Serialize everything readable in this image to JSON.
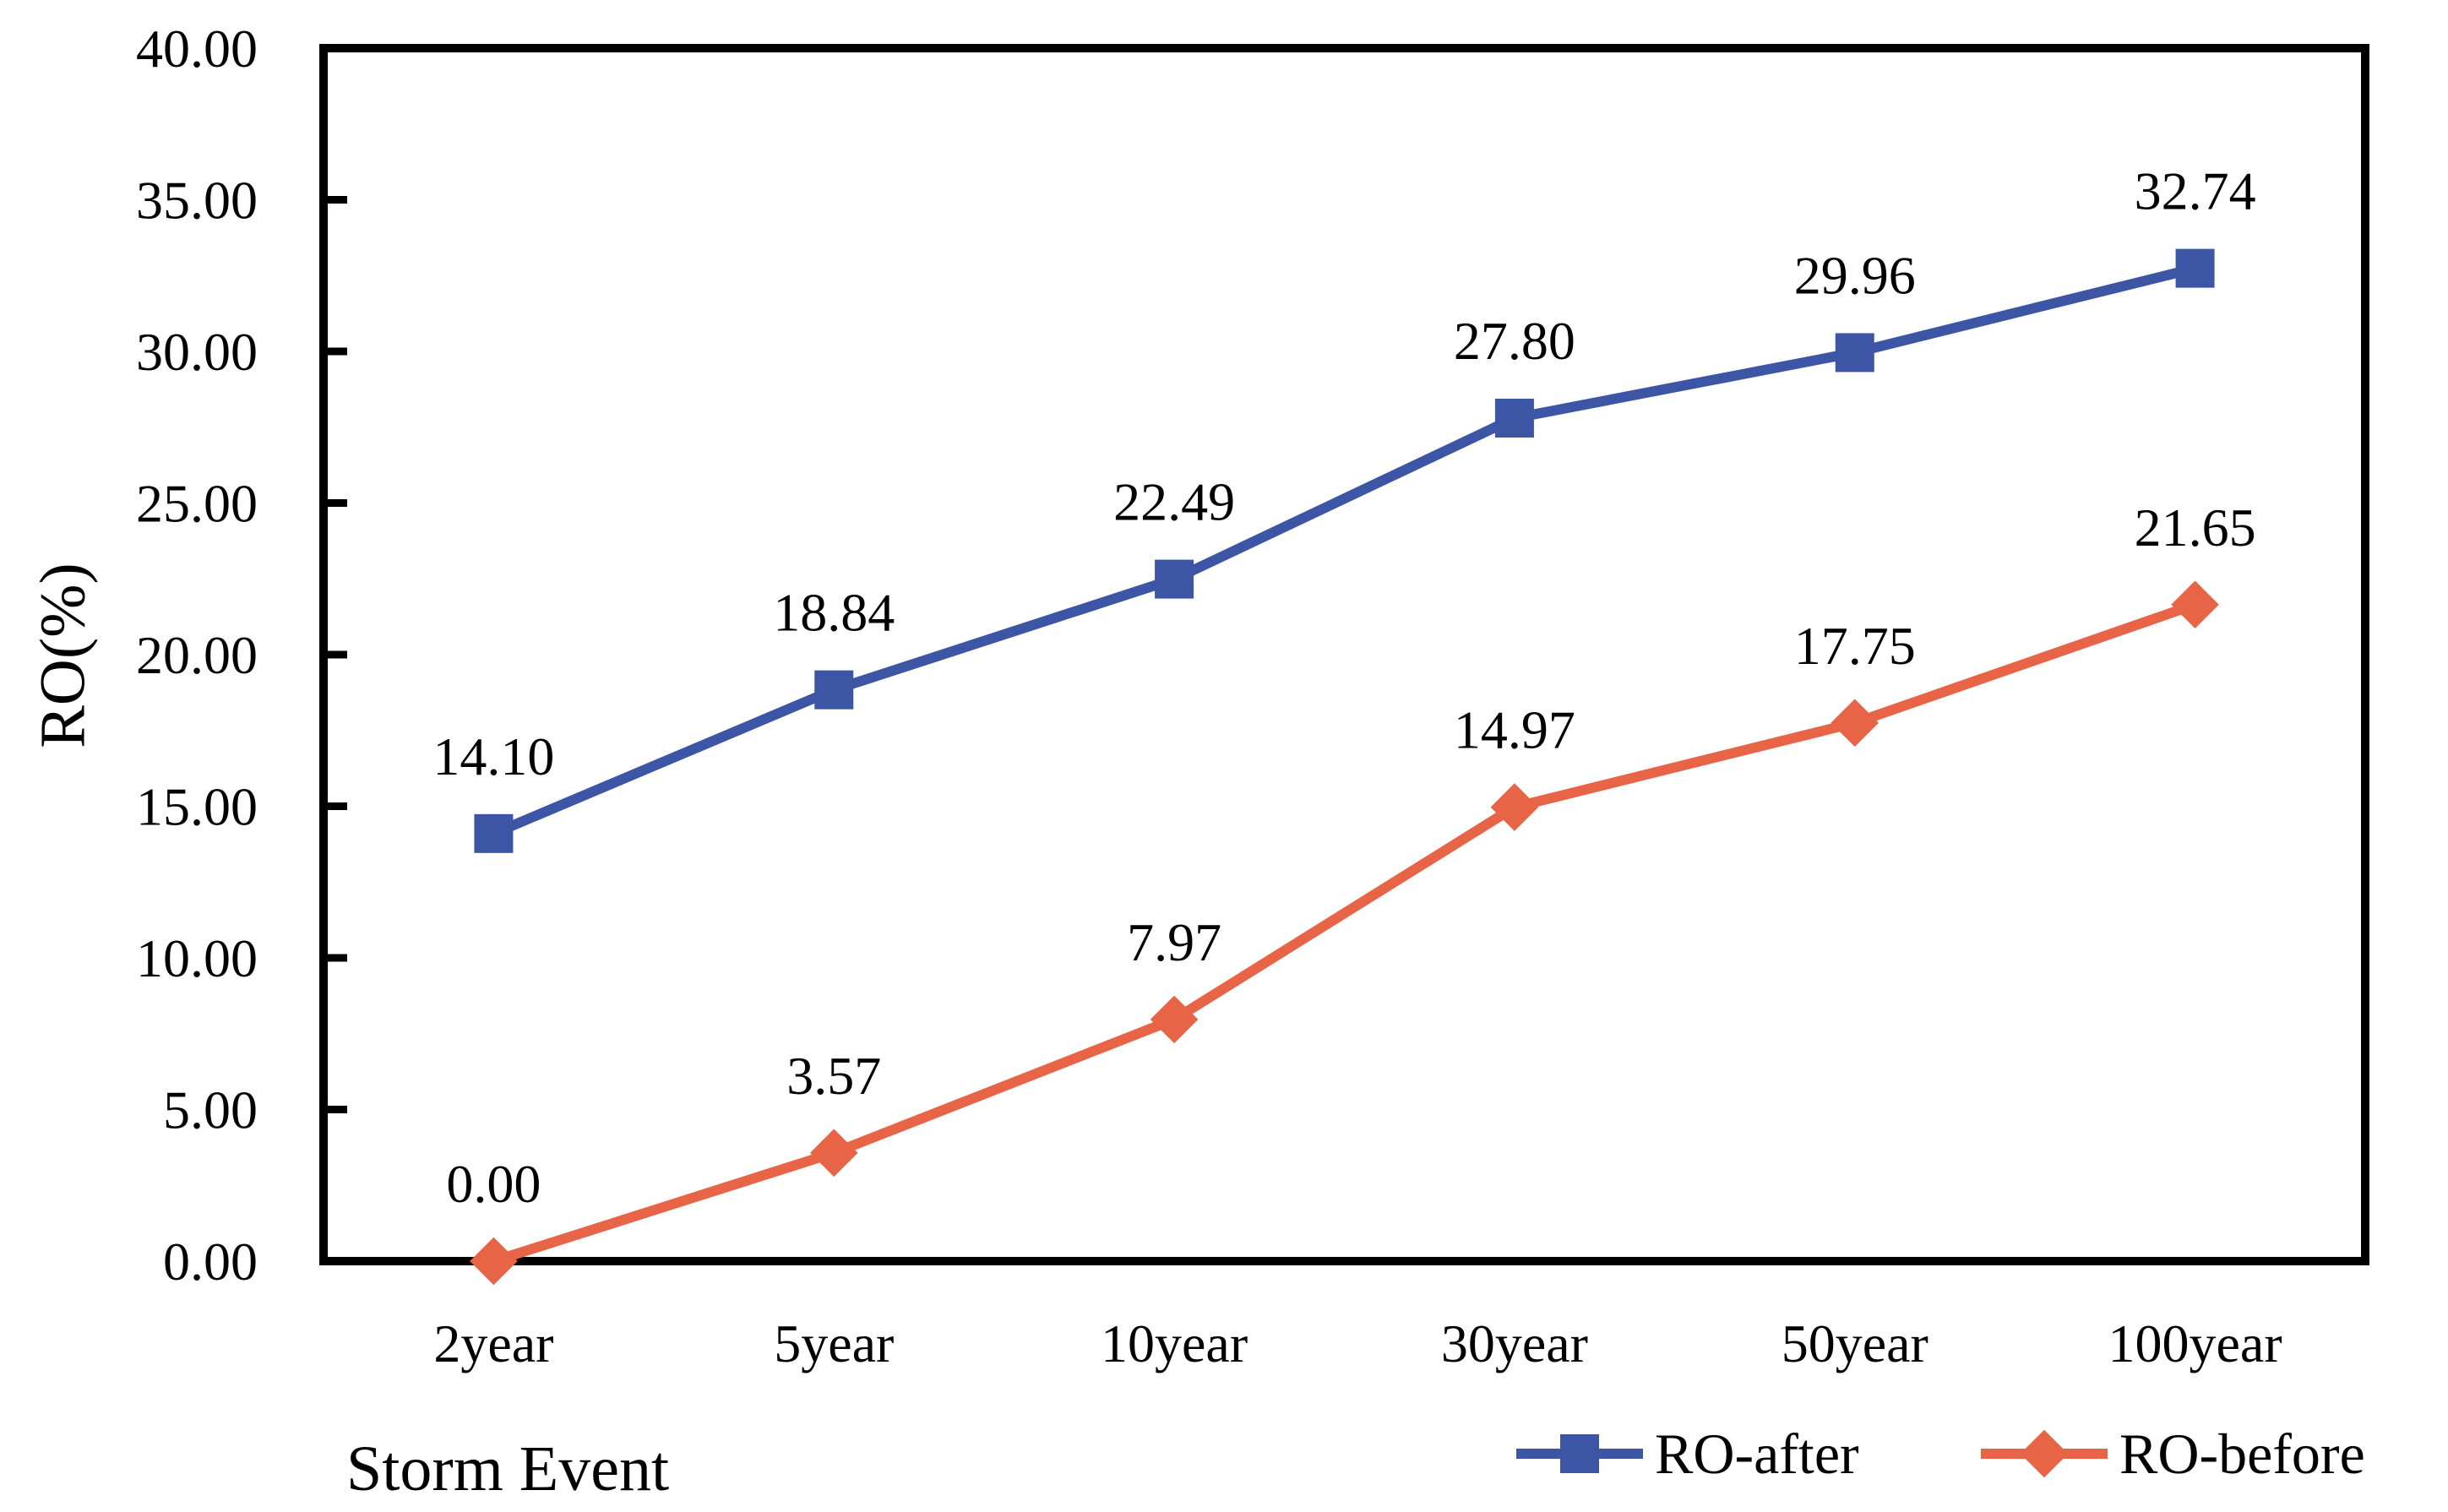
{
  "chart_data": {
    "type": "line",
    "categories": [
      "2year",
      "5year",
      "10year",
      "30year",
      "50year",
      "100year"
    ],
    "series": [
      {
        "name": "RO-after",
        "marker": "square",
        "color": "#3C55A5",
        "values": [
          14.1,
          18.84,
          22.49,
          27.8,
          29.96,
          32.74
        ],
        "point_labels": [
          "14.10",
          "18.84",
          "22.49",
          "27.80",
          "29.96",
          "32.74"
        ]
      },
      {
        "name": "RO-before",
        "marker": "diamond",
        "color": "#E86446",
        "values": [
          0.0,
          3.57,
          7.97,
          14.97,
          17.75,
          21.65
        ],
        "point_labels": [
          "0.00",
          "3.57",
          "7.97",
          "14.97",
          "17.75",
          "21.65"
        ]
      }
    ],
    "title": "",
    "xlabel": "Storm Event",
    "ylabel": "RO(%)",
    "ylim": [
      0,
      40
    ],
    "ytick_step": 5,
    "ytick_labels": [
      "0.00",
      "5.00",
      "10.00",
      "15.00",
      "20.00",
      "25.00",
      "30.00",
      "35.00",
      "40.00"
    ],
    "grid": false,
    "legend_position": "bottom-right",
    "axis_color": "#000000",
    "text_color": "#000000",
    "background_color": "#ffffff"
  }
}
